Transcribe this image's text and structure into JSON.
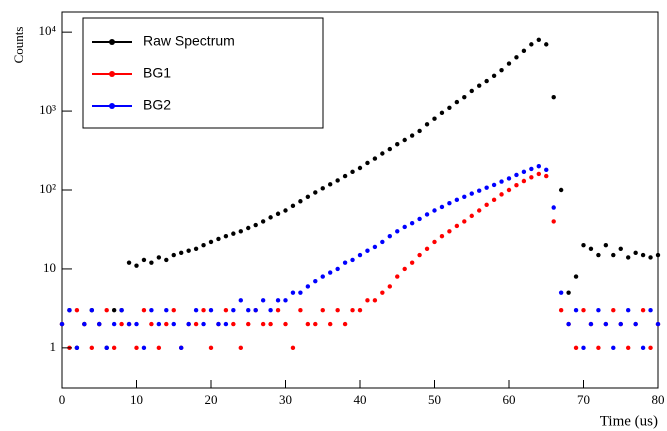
{
  "chart_data": {
    "type": "scatter",
    "x_label": "Time (us)",
    "y_label": "Counts",
    "log_y": true,
    "grid": false,
    "legend": "upper left",
    "xlim": [
      0,
      80
    ],
    "xticks": [
      0,
      10,
      20,
      30,
      40,
      50,
      60,
      70,
      80
    ],
    "ylim": [
      0.31,
      18000
    ],
    "yticks": [
      1,
      10,
      {
        "value": 100,
        "label": "10²"
      },
      {
        "value": 1000,
        "label": "10³"
      },
      {
        "value": 10000,
        "label": "10⁴"
      }
    ],
    "x": [
      0,
      1,
      2,
      3,
      4,
      5,
      6,
      7,
      8,
      9,
      10,
      11,
      12,
      13,
      14,
      15,
      16,
      17,
      18,
      19,
      20,
      21,
      22,
      23,
      24,
      25,
      26,
      27,
      28,
      29,
      30,
      31,
      32,
      33,
      34,
      35,
      36,
      37,
      38,
      39,
      40,
      41,
      42,
      43,
      44,
      45,
      46,
      47,
      48,
      49,
      50,
      51,
      52,
      53,
      54,
      55,
      56,
      57,
      58,
      59,
      60,
      61,
      62,
      63,
      64,
      65,
      66,
      67,
      68,
      69,
      70,
      71,
      72,
      73,
      74,
      75,
      76,
      77,
      78,
      79,
      80
    ],
    "series": [
      {
        "name": "Raw Spectrum",
        "color": "#000000",
        "values": [
          2,
          3,
          1,
          2,
          3,
          2,
          1,
          3,
          3,
          12,
          11,
          13,
          12,
          14,
          13,
          15,
          16,
          17,
          18,
          20,
          22,
          24,
          26,
          28,
          30,
          33,
          36,
          40,
          45,
          50,
          55,
          63,
          72,
          82,
          93,
          105,
          118,
          132,
          150,
          170,
          190,
          220,
          250,
          290,
          330,
          380,
          430,
          490,
          560,
          680,
          800,
          950,
          1100,
          1300,
          1500,
          1800,
          2100,
          2400,
          2800,
          3300,
          4000,
          4800,
          5800,
          7000,
          8000,
          7000,
          1500,
          100,
          5,
          8,
          20,
          18,
          15,
          20,
          15,
          18,
          14,
          16,
          15,
          14,
          15
        ]
      },
      {
        "name": "BG1",
        "color": "#ff0000",
        "values": [
          2,
          1,
          3,
          2,
          1,
          2,
          3,
          1,
          2,
          2,
          1,
          3,
          2,
          1,
          2,
          3,
          1,
          2,
          2,
          3,
          1,
          2,
          3,
          2,
          1,
          2,
          3,
          2,
          2,
          3,
          2,
          1,
          3,
          2,
          2,
          3,
          2,
          3,
          2,
          3,
          3,
          4,
          4,
          5,
          6,
          8,
          10,
          12,
          15,
          18,
          22,
          26,
          30,
          35,
          40,
          47,
          55,
          65,
          75,
          88,
          100,
          115,
          130,
          145,
          160,
          150,
          40,
          3,
          2,
          1,
          3,
          2,
          1,
          2,
          3,
          2,
          1,
          2,
          3,
          1,
          2
        ]
      },
      {
        "name": "BG2",
        "color": "#0000ff",
        "values": [
          2,
          3,
          1,
          2,
          3,
          2,
          1,
          2,
          3,
          2,
          2,
          1,
          3,
          2,
          3,
          2,
          1,
          2,
          3,
          2,
          3,
          2,
          2,
          3,
          4,
          3,
          3,
          4,
          3,
          4,
          4,
          5,
          5,
          6,
          7,
          8,
          9,
          10,
          12,
          13,
          15,
          17,
          19,
          22,
          26,
          30,
          34,
          38,
          43,
          49,
          55,
          61,
          68,
          75,
          82,
          90,
          98,
          107,
          116,
          128,
          140,
          155,
          170,
          185,
          200,
          180,
          60,
          5,
          2,
          3,
          1,
          2,
          3,
          2,
          1,
          2,
          3,
          2,
          1,
          3,
          2
        ]
      }
    ]
  }
}
